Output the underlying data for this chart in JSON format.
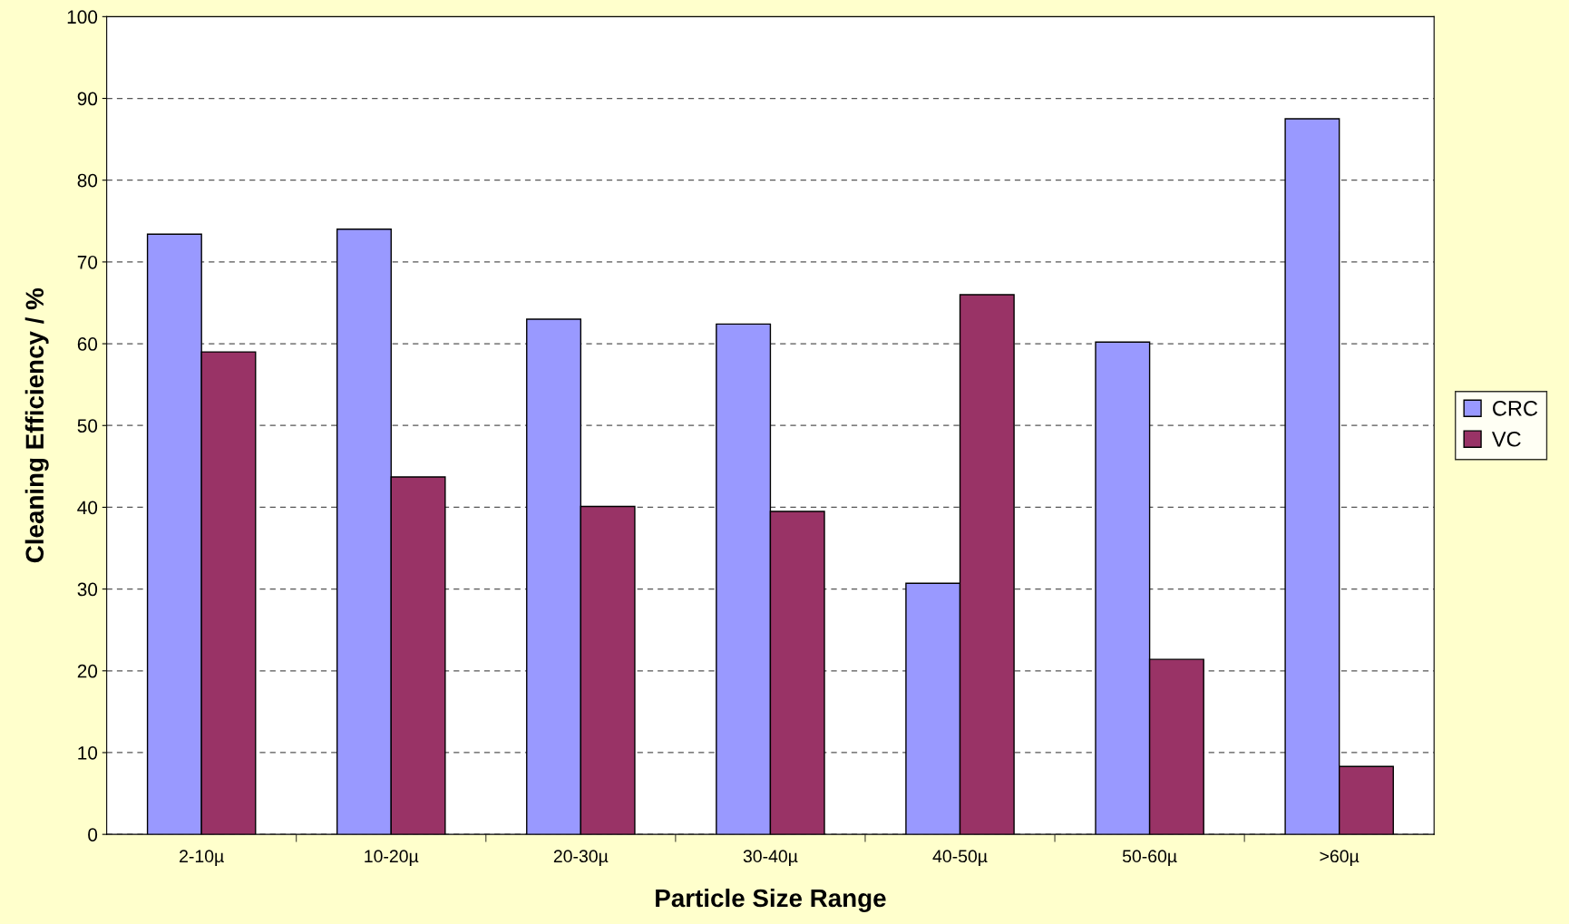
{
  "chart_data": {
    "type": "bar",
    "xlabel": "Particle Size Range",
    "ylabel": "Cleaning Efficiency / %",
    "categories": [
      "2-10µ",
      "10-20µ",
      "20-30µ",
      "30-40µ",
      "40-50µ",
      "50-60µ",
      ">60µ"
    ],
    "series": [
      {
        "name": "CRC",
        "color": "#9999ff",
        "values": [
          73.4,
          74.0,
          63.0,
          62.4,
          30.7,
          60.2,
          87.5
        ]
      },
      {
        "name": "VC",
        "color": "#993366",
        "values": [
          59.0,
          43.7,
          40.1,
          39.5,
          66.0,
          21.4,
          8.3
        ]
      }
    ],
    "ylim": [
      0,
      100
    ],
    "yticks": [
      0,
      10,
      20,
      30,
      40,
      50,
      60,
      70,
      80,
      90,
      100
    ],
    "grid": "y",
    "legend": "right"
  }
}
